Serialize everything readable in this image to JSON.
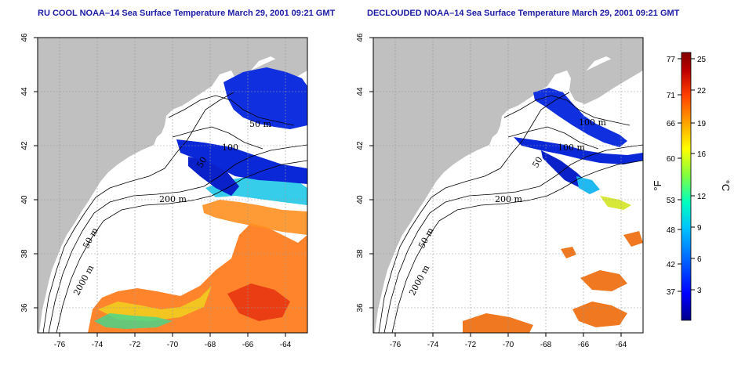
{
  "panels": [
    {
      "title": "RU COOL NOAA–14 Sea Surface Temperature March 29, 2001 09:21 GMT",
      "x_ticks": [
        "-76",
        "-74",
        "-72",
        "-70",
        "-68",
        "-66",
        "-64"
      ],
      "y_ticks": [
        "36",
        "38",
        "40",
        "42",
        "44",
        "46"
      ],
      "contour_labels": [
        "50 m",
        "100",
        "50",
        "200 m",
        "50 m",
        "2000 m"
      ],
      "clouds_removed": false
    },
    {
      "title": "DECLOUDED NOAA–14 Sea Surface Temperature March 29, 2001 09:21 GMT",
      "x_ticks": [
        "-76",
        "-74",
        "-72",
        "-70",
        "-68",
        "-66",
        "-64"
      ],
      "y_ticks": [
        "36",
        "38",
        "40",
        "42",
        "44",
        "46"
      ],
      "contour_labels": [
        "100 m",
        "100 m",
        "50",
        "200 m",
        "50 m",
        "2000 m"
      ],
      "clouds_removed": true
    }
  ],
  "colorbar": {
    "fahrenheit_ticks": [
      "77",
      "71",
      "66",
      "60",
      "53",
      "48",
      "42",
      "37"
    ],
    "celsius_ticks": [
      "25",
      "22",
      "19",
      "16",
      "12",
      "9",
      "6",
      "3"
    ],
    "fahrenheit_unit": "°F",
    "celsius_unit": "°C",
    "colors": [
      "#00008b",
      "#0000ff",
      "#0060ff",
      "#00c0ff",
      "#00ffc0",
      "#80ff40",
      "#ffff00",
      "#ffa000",
      "#ff4000",
      "#c00000",
      "#800000"
    ]
  },
  "colors": {
    "land": "#c0c0c0",
    "title": "#1a1aa6",
    "ocean_cloud": "#ffffff"
  }
}
